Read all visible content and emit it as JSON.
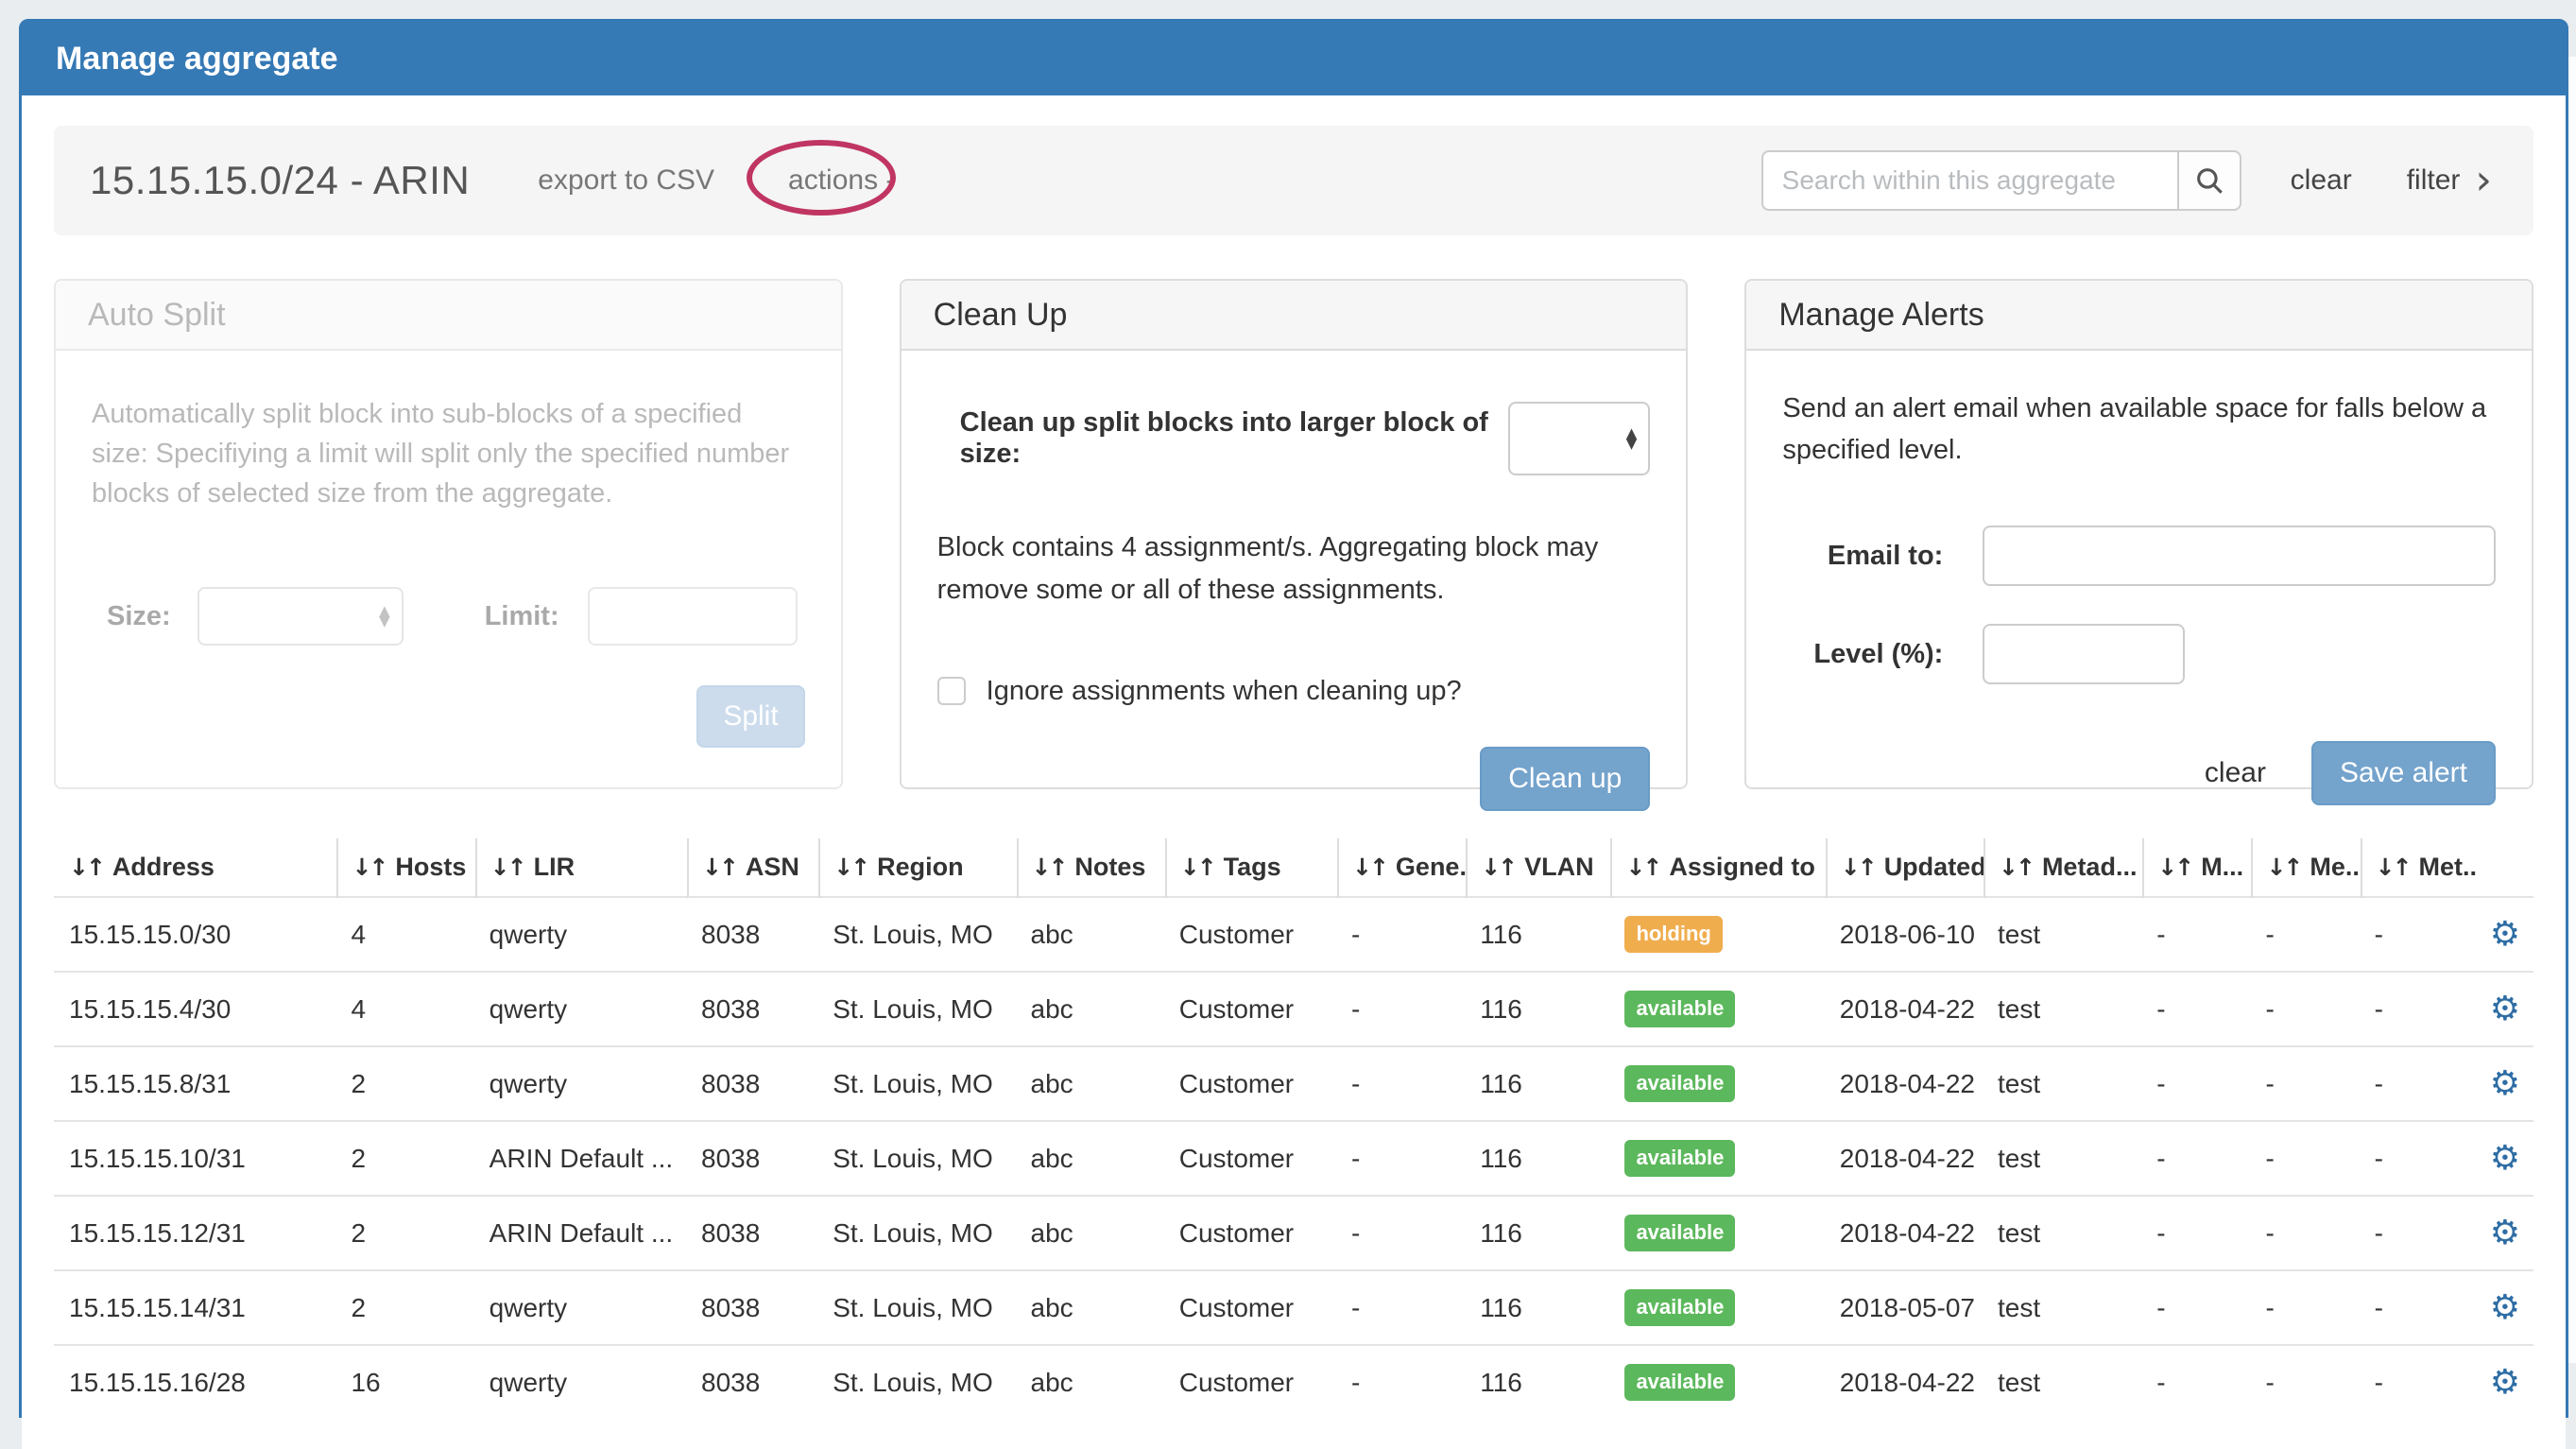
{
  "page": {
    "title": "Manage aggregate"
  },
  "toolbar": {
    "aggregate_title": "15.15.15.0/24 - ARIN",
    "export_csv": "export to CSV",
    "actions": "actions -",
    "search_placeholder": "Search within this aggregate",
    "clear": "clear",
    "filter": "filter"
  },
  "panels": {
    "auto_split": {
      "title": "Auto Split",
      "description": "Automatically split block into sub-blocks of a specified size: Specifiying a limit will split only the specified number blocks of selected size from the aggregate.",
      "size_label": "Size:",
      "limit_label": "Limit:",
      "split_button": "Split"
    },
    "clean_up": {
      "title": "Clean Up",
      "size_label": "Clean up split blocks into larger block of size:",
      "note": "Block contains 4 assignment/s. Aggregating block may remove some or all of these assignments.",
      "checkbox_label": "Ignore assignments when cleaning up?",
      "button": "Clean up"
    },
    "manage_alerts": {
      "title": "Manage Alerts",
      "description": "Send an alert email when available space for falls below a specified level.",
      "email_label": "Email to:",
      "level_label": "Level (%):",
      "clear": "clear",
      "save_button": "Save alert"
    }
  },
  "icons": {
    "sort": "↓↑",
    "gear": "⚙",
    "filter_chevron": "›",
    "select_arrows_up": "▲",
    "select_arrows_down": "▼"
  },
  "colors": {
    "accent_blue": "#3579b5",
    "button_blue": "#74a3cc",
    "badge_holding": "#f0ad4e",
    "badge_available": "#5cb85c",
    "gear_blue": "#2e6da4",
    "annotation_red": "#c03562"
  },
  "table": {
    "columns": [
      {
        "key": "address",
        "label": "Address"
      },
      {
        "key": "hosts",
        "label": "Hosts"
      },
      {
        "key": "lir",
        "label": "LIR"
      },
      {
        "key": "asn",
        "label": "ASN"
      },
      {
        "key": "region",
        "label": "Region"
      },
      {
        "key": "notes",
        "label": "Notes"
      },
      {
        "key": "tags",
        "label": "Tags"
      },
      {
        "key": "gene",
        "label": "Gene..."
      },
      {
        "key": "vlan",
        "label": "VLAN"
      },
      {
        "key": "assigned",
        "label": "Assigned to"
      },
      {
        "key": "updated",
        "label": "Updated"
      },
      {
        "key": "metad",
        "label": "Metad..."
      },
      {
        "key": "m1",
        "label": "M..."
      },
      {
        "key": "m2",
        "label": "Me..."
      },
      {
        "key": "m3",
        "label": "Met..."
      }
    ],
    "rows": [
      {
        "address": "15.15.15.0/30",
        "hosts": "4",
        "lir": "qwerty",
        "asn": "8038",
        "region": "St. Louis, MO",
        "notes": "abc",
        "tags": "Customer",
        "gene": "-",
        "vlan": "116",
        "assigned": "holding",
        "assigned_status": "holding",
        "updated": "2018-06-10",
        "metad": "test",
        "m1": "-",
        "m2": "-",
        "m3": "-"
      },
      {
        "address": "15.15.15.4/30",
        "hosts": "4",
        "lir": "qwerty",
        "asn": "8038",
        "region": "St. Louis, MO",
        "notes": "abc",
        "tags": "Customer",
        "gene": "-",
        "vlan": "116",
        "assigned": "available",
        "assigned_status": "available",
        "updated": "2018-04-22",
        "metad": "test",
        "m1": "-",
        "m2": "-",
        "m3": "-"
      },
      {
        "address": "15.15.15.8/31",
        "hosts": "2",
        "lir": "qwerty",
        "asn": "8038",
        "region": "St. Louis, MO",
        "notes": "abc",
        "tags": "Customer",
        "gene": "-",
        "vlan": "116",
        "assigned": "available",
        "assigned_status": "available",
        "updated": "2018-04-22",
        "metad": "test",
        "m1": "-",
        "m2": "-",
        "m3": "-"
      },
      {
        "address": "15.15.15.10/31",
        "hosts": "2",
        "lir": "ARIN Default ...",
        "asn": "8038",
        "region": "St. Louis, MO",
        "notes": "abc",
        "tags": "Customer",
        "gene": "-",
        "vlan": "116",
        "assigned": "available",
        "assigned_status": "available",
        "updated": "2018-04-22",
        "metad": "test",
        "m1": "-",
        "m2": "-",
        "m3": "-"
      },
      {
        "address": "15.15.15.12/31",
        "hosts": "2",
        "lir": "ARIN Default ...",
        "asn": "8038",
        "region": "St. Louis, MO",
        "notes": "abc",
        "tags": "Customer",
        "gene": "-",
        "vlan": "116",
        "assigned": "available",
        "assigned_status": "available",
        "updated": "2018-04-22",
        "metad": "test",
        "m1": "-",
        "m2": "-",
        "m3": "-"
      },
      {
        "address": "15.15.15.14/31",
        "hosts": "2",
        "lir": "qwerty",
        "asn": "8038",
        "region": "St. Louis, MO",
        "notes": "abc",
        "tags": "Customer",
        "gene": "-",
        "vlan": "116",
        "assigned": "available",
        "assigned_status": "available",
        "updated": "2018-05-07",
        "metad": "test",
        "m1": "-",
        "m2": "-",
        "m3": "-"
      },
      {
        "address": "15.15.15.16/28",
        "hosts": "16",
        "lir": "qwerty",
        "asn": "8038",
        "region": "St. Louis, MO",
        "notes": "abc",
        "tags": "Customer",
        "gene": "-",
        "vlan": "116",
        "assigned": "available",
        "assigned_status": "available",
        "updated": "2018-04-22",
        "metad": "test",
        "m1": "-",
        "m2": "-",
        "m3": "-"
      }
    ]
  }
}
